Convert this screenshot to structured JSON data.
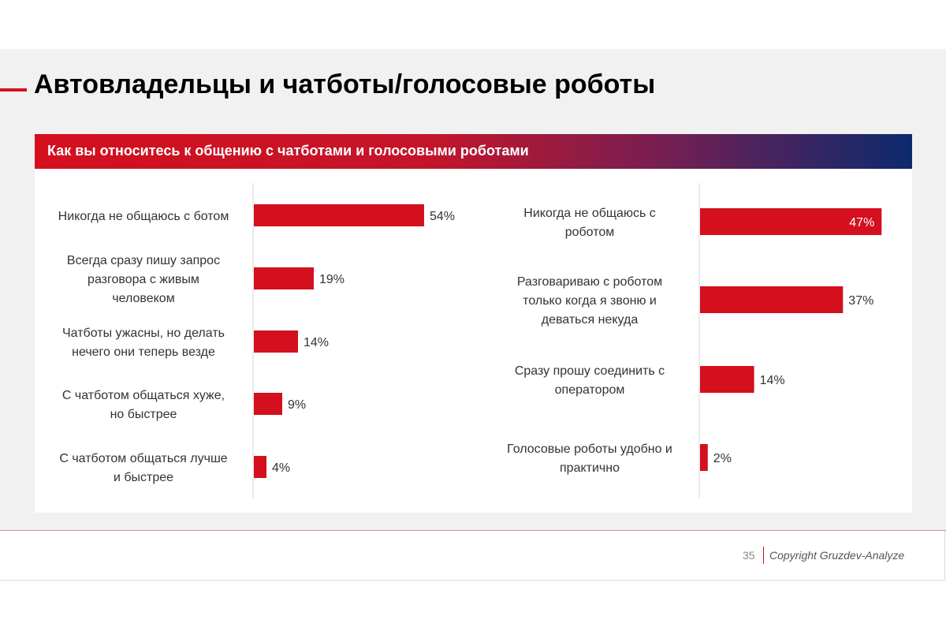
{
  "slide": {
    "title": "Автовладельцы и чатботы/голосовые роботы",
    "subtitle": "Как вы относитесь к общению с чатботами и голосовыми роботами",
    "page_number": "35",
    "copyright": "Copyright Gruzdev-Analyze"
  },
  "colors": {
    "bar": "#d40f1e",
    "accent": "#d40f1e"
  },
  "chart_data": [
    {
      "type": "bar",
      "orientation": "horizontal",
      "categories": [
        "Никогда не общаюсь с ботом",
        "Всегда сразу пишу запрос разговора с живым человеком",
        "Чатботы ужасны, но делать нечего они теперь везде",
        "С чатботом общаться хуже, но быстрее",
        "С чатботом общаться лучше и быстрее"
      ],
      "category_lines": [
        [
          "Никогда не общаюсь с ботом"
        ],
        [
          "Всегда сразу пишу запрос",
          "разговора с живым",
          "человеком"
        ],
        [
          "Чатботы ужасны, но делать",
          "нечего они теперь везде"
        ],
        [
          "С чатботом общаться хуже,",
          "но быстрее"
        ],
        [
          "С чатботом общаться лучше",
          "и быстрее"
        ]
      ],
      "values": [
        54,
        19,
        14,
        9,
        4
      ],
      "value_labels": [
        "54%",
        "19%",
        "14%",
        "9%",
        "4%"
      ],
      "unit": "%",
      "xlim": [
        0,
        100
      ]
    },
    {
      "type": "bar",
      "orientation": "horizontal",
      "categories": [
        "Никогда не общаюсь с роботом",
        "Разговариваю с роботом только когда я звоню и деваться некуда",
        "Сразу прошу соединить с оператором",
        "Голосовые роботы удобно и практично"
      ],
      "category_lines": [
        [
          "Никогда не общаюсь с",
          "роботом"
        ],
        [
          "Разговариваю с роботом",
          "только когда я звоню и",
          "деваться некуда"
        ],
        [
          "Сразу прошу соединить с",
          "оператором"
        ],
        [
          "Голосовые роботы удобно и",
          "практично"
        ]
      ],
      "values": [
        47,
        37,
        14,
        2
      ],
      "value_labels": [
        "47%",
        "37%",
        "14%",
        "2%"
      ],
      "unit": "%",
      "xlim": [
        0,
        100
      ]
    }
  ]
}
